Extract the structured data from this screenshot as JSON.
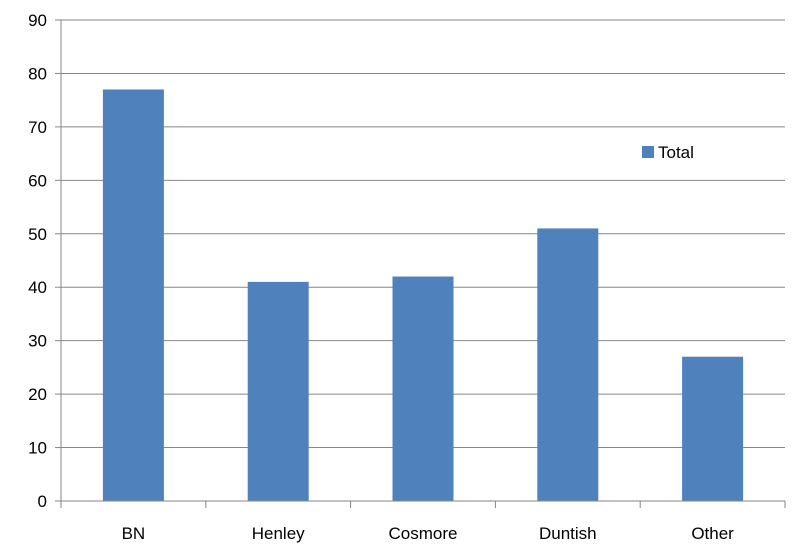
{
  "chart_data": {
    "type": "bar",
    "categories": [
      "BN",
      "Henley",
      "Cosmore",
      "Duntish",
      "Other"
    ],
    "series": [
      {
        "name": "Total",
        "values": [
          77,
          41,
          42,
          51,
          27
        ],
        "color": "#4F81BD"
      }
    ],
    "title": "",
    "xlabel": "",
    "ylabel": "",
    "ylim": [
      0,
      90
    ],
    "yticks": [
      0,
      10,
      20,
      30,
      40,
      50,
      60,
      70,
      80,
      90
    ],
    "grid": true,
    "legend": "right",
    "colors": {
      "bar": "#4F81BD",
      "grid": "#868686",
      "axis": "#868686"
    }
  }
}
